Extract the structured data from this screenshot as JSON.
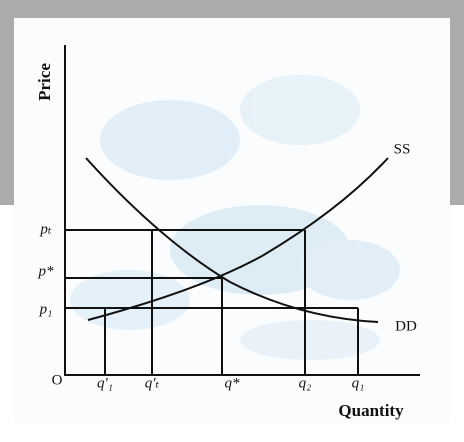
{
  "axes": {
    "y_label": "Price",
    "x_label": "Quantity",
    "origin": "O"
  },
  "price_labels": [
    "pₜ",
    "p*",
    "p₁"
  ],
  "quantity_labels": [
    "q′₁",
    "q′ₜ",
    "q*",
    "q₂",
    "q₁"
  ],
  "curves": {
    "supply": "SS",
    "demand": "DD"
  }
}
